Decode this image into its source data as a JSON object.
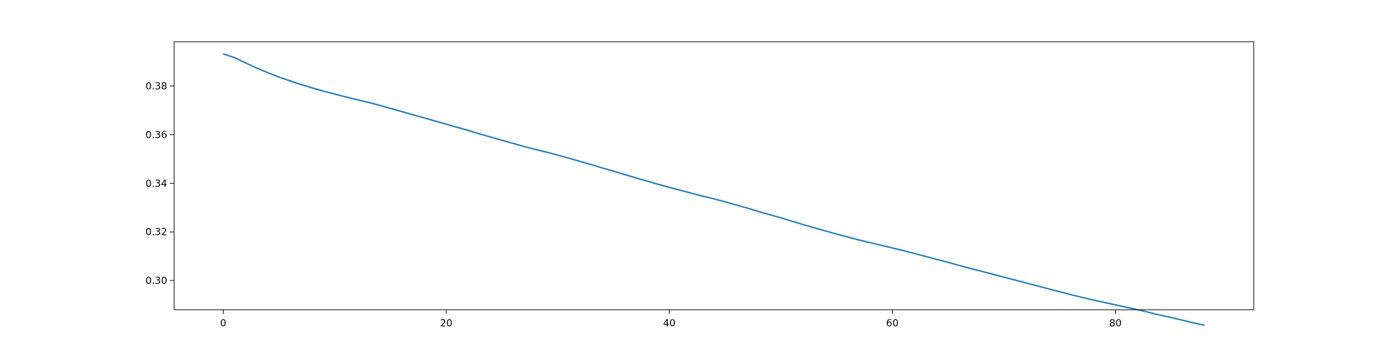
{
  "chart_data": {
    "type": "line",
    "title": "",
    "xlabel": "",
    "ylabel": "",
    "xlim": [
      -4.4,
      92.4
    ],
    "ylim": [
      0.288,
      0.3982
    ],
    "xticks": [
      0,
      20,
      40,
      60,
      80
    ],
    "xtick_labels": [
      "0",
      "20",
      "40",
      "60",
      "80"
    ],
    "yticks": [
      0.3,
      0.32,
      0.34,
      0.36,
      0.38
    ],
    "ytick_labels": [
      "0.30",
      "0.32",
      "0.34",
      "0.36",
      "0.38"
    ],
    "grid": false,
    "legend": "none",
    "series": [
      {
        "color": "#1f77b4",
        "x": [
          0,
          1,
          2,
          3,
          4,
          5,
          6,
          7,
          8,
          9,
          10,
          11,
          12,
          13,
          14,
          15,
          16,
          17,
          18,
          19,
          20,
          21,
          22,
          23,
          24,
          25,
          26,
          27,
          28,
          29,
          30,
          31,
          32,
          33,
          34,
          35,
          36,
          37,
          38,
          39,
          40,
          41,
          42,
          43,
          44,
          45,
          46,
          47,
          48,
          49,
          50,
          51,
          52,
          53,
          54,
          55,
          56,
          57,
          58,
          59,
          60,
          61,
          62,
          63,
          64,
          65,
          66,
          67,
          68,
          69,
          70,
          71,
          72,
          73,
          74,
          75,
          76,
          77,
          78,
          79,
          80,
          81,
          82,
          83,
          84,
          85,
          86,
          87,
          88
        ],
        "y": [
          0.3932,
          0.3917,
          0.3895,
          0.3874,
          0.3855,
          0.3837,
          0.3821,
          0.3806,
          0.3792,
          0.3779,
          0.3767,
          0.3755,
          0.3744,
          0.3733,
          0.3721,
          0.3708,
          0.3695,
          0.3682,
          0.3669,
          0.3656,
          0.3643,
          0.363,
          0.3617,
          0.3603,
          0.359,
          0.3577,
          0.3564,
          0.3551,
          0.3539,
          0.3528,
          0.3516,
          0.3503,
          0.349,
          0.3477,
          0.3463,
          0.345,
          0.3436,
          0.3422,
          0.3409,
          0.3396,
          0.3383,
          0.3371,
          0.3359,
          0.3347,
          0.3336,
          0.3324,
          0.3311,
          0.3298,
          0.3284,
          0.3271,
          0.3258,
          0.3244,
          0.323,
          0.3217,
          0.3204,
          0.3191,
          0.3179,
          0.3167,
          0.3156,
          0.3145,
          0.3134,
          0.3123,
          0.3111,
          0.3099,
          0.3087,
          0.3075,
          0.3062,
          0.305,
          0.3038,
          0.3026,
          0.3014,
          0.3002,
          0.299,
          0.2978,
          0.2966,
          0.2954,
          0.2942,
          0.2931,
          0.292,
          0.291,
          0.29,
          0.289,
          0.288,
          0.2869,
          0.2858,
          0.2848,
          0.2837,
          0.2826,
          0.2816
        ]
      }
    ]
  }
}
